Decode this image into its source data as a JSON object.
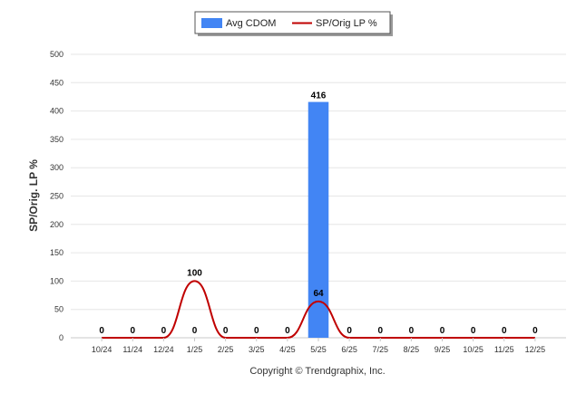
{
  "chart_data": {
    "type": "bar",
    "categories": [
      "10/24",
      "11/24",
      "12/24",
      "1/25",
      "2/25",
      "3/25",
      "4/25",
      "5/25",
      "6/25",
      "7/25",
      "8/25",
      "9/25",
      "10/25",
      "11/25",
      "12/25"
    ],
    "series": [
      {
        "name": "Avg CDOM",
        "type": "bar",
        "color": "#4285f4",
        "values": [
          0,
          0,
          0,
          0,
          0,
          0,
          0,
          416,
          0,
          0,
          0,
          0,
          0,
          0,
          0
        ]
      },
      {
        "name": "SP/Orig LP %",
        "type": "line",
        "color": "#c00000",
        "values": [
          0,
          0,
          0,
          100,
          0,
          0,
          0,
          64,
          0,
          0,
          0,
          0,
          0,
          0,
          0
        ]
      }
    ],
    "bar_labels": [
      "0",
      "0",
      "0",
      "0",
      "0",
      "0",
      "0",
      "416",
      "0",
      "0",
      "0",
      "0",
      "0",
      "0",
      "0"
    ],
    "line_labels": [
      "",
      "",
      "",
      "100",
      "",
      "",
      "",
      "64",
      "",
      "",
      "",
      "",
      "",
      "",
      ""
    ],
    "ylabel": "SP/Orig. LP %",
    "ylim": [
      0,
      500
    ],
    "yticks": [
      0,
      50,
      100,
      150,
      200,
      250,
      300,
      350,
      400,
      450,
      500
    ],
    "grid": true,
    "legend_position": "top-center"
  },
  "footer": {
    "copyright": "Copyright © Trendgraphix, Inc."
  }
}
